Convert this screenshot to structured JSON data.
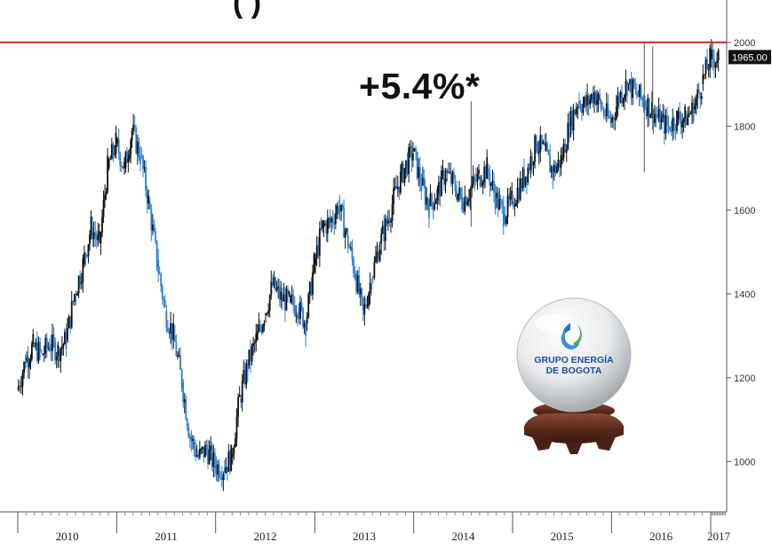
{
  "chart_data": {
    "type": "candlestick",
    "title": "",
    "annotation": "+5.4%*",
    "title_fragment": "( )",
    "xlabel": "",
    "ylabel": "",
    "x_tick_labels": [
      "2010",
      "2011",
      "2012",
      "2013",
      "2014",
      "2015",
      "2016",
      "2017"
    ],
    "y_tick_labels": [
      "1000",
      "1200",
      "1400",
      "1600",
      "1800",
      "2000"
    ],
    "ylim": [
      880,
      2080
    ],
    "last_value_label": "1965.00",
    "reference_line": {
      "value": 2000,
      "color": "#e02020"
    },
    "colors": {
      "up": "#111111",
      "down": "#2a7fd4",
      "reference": "#e02020",
      "axis": "#555555"
    },
    "series_path": [
      [
        "2010-01",
        1170
      ],
      [
        "2010-02",
        1240
      ],
      [
        "2010-03",
        1275
      ],
      [
        "2010-04",
        1255
      ],
      [
        "2010-05",
        1280
      ],
      [
        "2010-06",
        1265
      ],
      [
        "2010-07",
        1290
      ],
      [
        "2010-08",
        1400
      ],
      [
        "2010-09",
        1470
      ],
      [
        "2010-10",
        1560
      ],
      [
        "2010-11",
        1520
      ],
      [
        "2010-12",
        1700
      ],
      [
        "2011-01",
        1760
      ],
      [
        "2011-02",
        1700
      ],
      [
        "2011-03",
        1790
      ],
      [
        "2011-04",
        1730
      ],
      [
        "2011-05",
        1620
      ],
      [
        "2011-06",
        1480
      ],
      [
        "2011-07",
        1360
      ],
      [
        "2011-08",
        1300
      ],
      [
        "2011-09",
        1190
      ],
      [
        "2011-10",
        1060
      ],
      [
        "2011-11",
        1010
      ],
      [
        "2011-12",
        1030
      ],
      [
        "2012-01",
        990
      ],
      [
        "2012-02",
        985
      ],
      [
        "2012-03",
        1010
      ],
      [
        "2012-04",
        1150
      ],
      [
        "2012-05",
        1230
      ],
      [
        "2012-06",
        1290
      ],
      [
        "2012-07",
        1350
      ],
      [
        "2012-08",
        1420
      ],
      [
        "2012-09",
        1390
      ],
      [
        "2012-10",
        1380
      ],
      [
        "2012-11",
        1370
      ],
      [
        "2012-12",
        1330
      ],
      [
        "2013-01",
        1470
      ],
      [
        "2013-02",
        1560
      ],
      [
        "2013-03",
        1570
      ],
      [
        "2013-04",
        1610
      ],
      [
        "2013-05",
        1540
      ],
      [
        "2013-06",
        1450
      ],
      [
        "2013-07",
        1350
      ],
      [
        "2013-08",
        1440
      ],
      [
        "2013-09",
        1520
      ],
      [
        "2013-10",
        1580
      ],
      [
        "2013-11",
        1650
      ],
      [
        "2013-12",
        1700
      ],
      [
        "2014-01",
        1740
      ],
      [
        "2014-02",
        1660
      ],
      [
        "2014-03",
        1610
      ],
      [
        "2014-04",
        1640
      ],
      [
        "2014-05",
        1690
      ],
      [
        "2014-06",
        1660
      ],
      [
        "2014-07",
        1620
      ],
      [
        "2014-08",
        1650
      ],
      [
        "2014-09",
        1680
      ],
      [
        "2014-10",
        1700
      ],
      [
        "2014-11",
        1630
      ],
      [
        "2014-12",
        1590
      ],
      [
        "2015-01",
        1620
      ],
      [
        "2015-02",
        1660
      ],
      [
        "2015-03",
        1700
      ],
      [
        "2015-04",
        1760
      ],
      [
        "2015-05",
        1740
      ],
      [
        "2015-06",
        1690
      ],
      [
        "2015-07",
        1720
      ],
      [
        "2015-08",
        1800
      ],
      [
        "2015-09",
        1860
      ],
      [
        "2015-10",
        1850
      ],
      [
        "2015-11",
        1880
      ],
      [
        "2015-12",
        1840
      ],
      [
        "2016-01",
        1810
      ],
      [
        "2016-02",
        1870
      ],
      [
        "2016-03",
        1900
      ],
      [
        "2016-04",
        1880
      ],
      [
        "2016-05",
        1860
      ],
      [
        "2016-06",
        1840
      ],
      [
        "2016-07",
        1810
      ],
      [
        "2016-08",
        1800
      ],
      [
        "2016-09",
        1820
      ],
      [
        "2016-10",
        1820
      ],
      [
        "2016-11",
        1840
      ],
      [
        "2016-12",
        1900
      ],
      [
        "2017-01",
        1960
      ],
      [
        "2017-02",
        1965
      ]
    ]
  },
  "logo": {
    "text_line1": "GRUPO ENERGÍA",
    "text_line2": "DE BOGOTA",
    "icon": "flame-drop-logo-icon",
    "colors": {
      "text": "#1a4fa0",
      "green": "#4caf50",
      "blue": "#2a6fc9"
    }
  }
}
